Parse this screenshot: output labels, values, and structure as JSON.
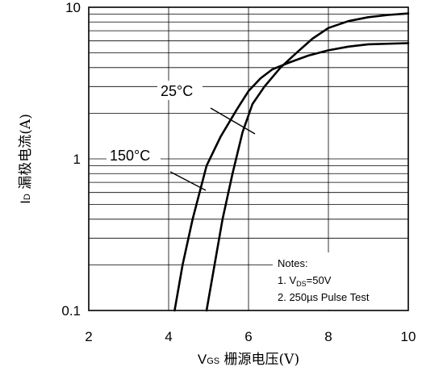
{
  "chart_data": {
    "type": "line",
    "x_scale": "linear",
    "y_scale": "log",
    "xlim": [
      2,
      10
    ],
    "ylim": [
      0.1,
      10
    ],
    "x_ticks": [
      "2",
      "4",
      "6",
      "8",
      "10"
    ],
    "y_ticks": [
      "0.1",
      "1",
      "10"
    ],
    "grid": true,
    "xlabel": {
      "main": "V",
      "sub": "GS",
      "rest": " 栅源电压(V)"
    },
    "ylabel": {
      "main": "I",
      "sub": "D",
      "rest": " 漏极电流(A)"
    },
    "series": [
      {
        "name": "25°C",
        "points": [
          [
            4.95,
            0.1
          ],
          [
            5.15,
            0.2
          ],
          [
            5.35,
            0.4
          ],
          [
            5.6,
            0.8
          ],
          [
            5.85,
            1.5
          ],
          [
            6.1,
            2.3
          ],
          [
            6.4,
            3.0
          ],
          [
            6.8,
            4.0
          ],
          [
            7.2,
            5.0
          ],
          [
            7.6,
            6.2
          ],
          [
            8.0,
            7.3
          ],
          [
            8.5,
            8.1
          ],
          [
            9.0,
            8.6
          ],
          [
            9.5,
            8.9
          ],
          [
            10.0,
            9.1
          ]
        ]
      },
      {
        "name": "150°C",
        "points": [
          [
            4.15,
            0.1
          ],
          [
            4.35,
            0.2
          ],
          [
            4.6,
            0.4
          ],
          [
            4.95,
            0.9
          ],
          [
            5.3,
            1.4
          ],
          [
            5.7,
            2.1
          ],
          [
            6.0,
            2.8
          ],
          [
            6.3,
            3.4
          ],
          [
            6.6,
            3.9
          ],
          [
            7.0,
            4.3
          ],
          [
            7.5,
            4.8
          ],
          [
            8.0,
            5.2
          ],
          [
            8.5,
            5.5
          ],
          [
            9.0,
            5.7
          ],
          [
            10.0,
            5.8
          ]
        ]
      }
    ],
    "annotations": [
      {
        "text": "25°C",
        "target_series": "25°C"
      },
      {
        "text": "150°C",
        "target_series": "150°C"
      }
    ],
    "notes": {
      "title": "Notes:",
      "line1": {
        "prefix": "1. V",
        "sub": "DS",
        "suffix": "=50V"
      },
      "line2": "2. 250µs Pulse Test"
    }
  }
}
